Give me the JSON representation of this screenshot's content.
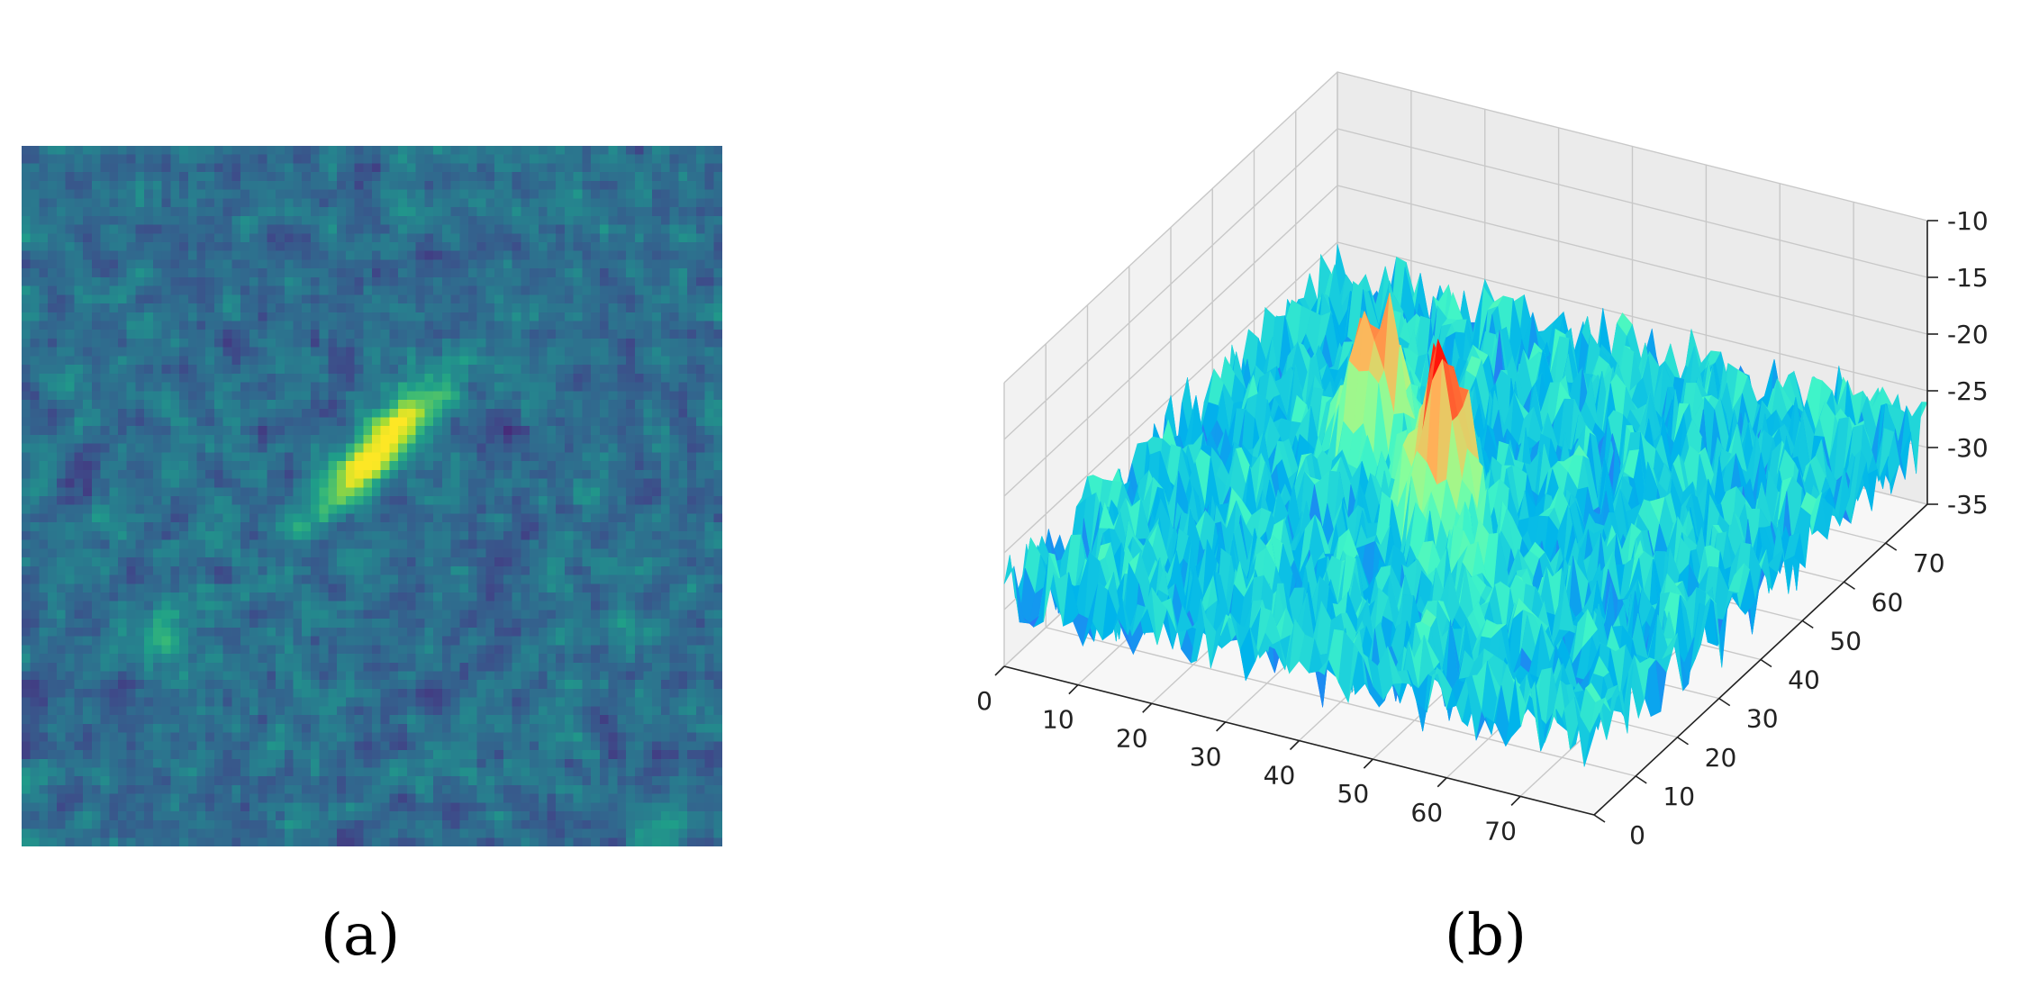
{
  "captions": {
    "a": "(a)",
    "b": "(b)"
  },
  "chart_data": [
    {
      "type": "heatmap",
      "title": "",
      "grid_size": 80,
      "colormap": "viridis",
      "features": [
        {
          "description": "elongated bright diagonal streak",
          "center": [
            40,
            34
          ],
          "peak_level": 1.0
        },
        {
          "description": "faint blob",
          "center": [
            16,
            55
          ],
          "peak_level": 0.55
        }
      ],
      "background_level": "noisy mid-dark"
    },
    {
      "type": "surface3d",
      "title": "",
      "colormap": "rainbow",
      "x_ticks": [
        "0",
        "10",
        "20",
        "30",
        "40",
        "50",
        "60",
        "70"
      ],
      "y_ticks": [
        "0",
        "10",
        "20",
        "30",
        "40",
        "50",
        "60",
        "70"
      ],
      "z_ticks": [
        "-10",
        "-15",
        "-20",
        "-25",
        "-30",
        "-35"
      ],
      "xlim": [
        0,
        80
      ],
      "ylim": [
        0,
        80
      ],
      "zlim": [
        -35,
        -10
      ],
      "grid": true,
      "baseline_value": -28,
      "noise_range": [
        -34,
        -22
      ],
      "peaks": [
        {
          "x": 40,
          "y": 34,
          "z": -12
        },
        {
          "x": 25,
          "y": 45,
          "z": -15
        }
      ]
    }
  ]
}
